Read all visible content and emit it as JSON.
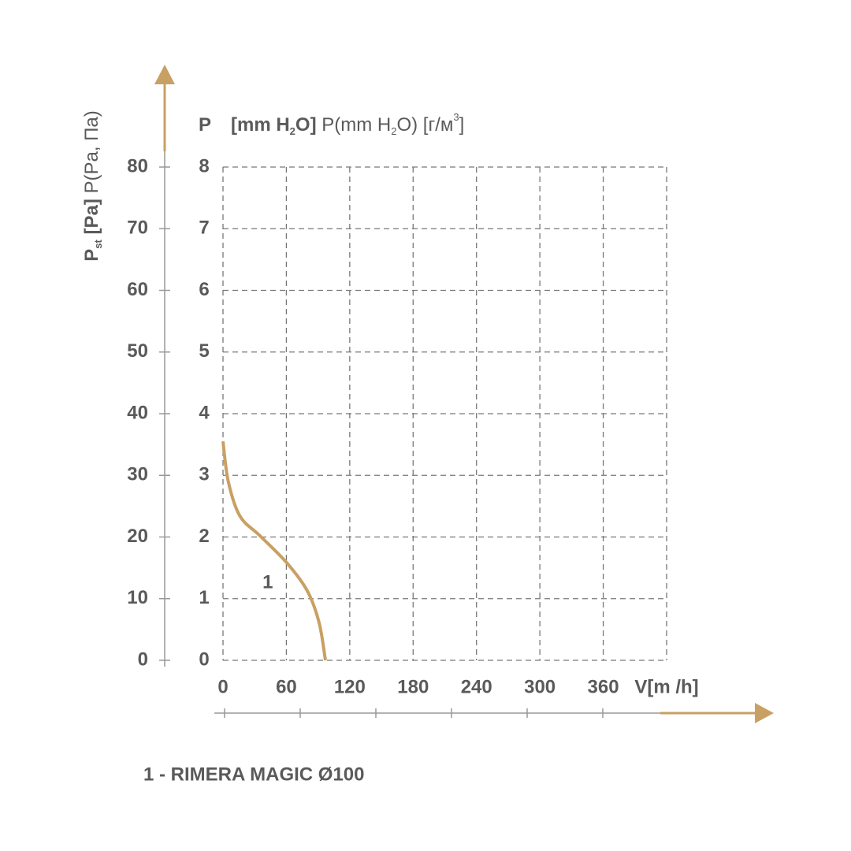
{
  "chart_data": {
    "type": "line",
    "y_title_parts": [
      "P",
      "st",
      " [Pa]",
      " P(Pa, Па)"
    ],
    "y2_title_parts": [
      "P",
      "[mm H",
      "2",
      "O]",
      " P(mm H",
      "2",
      "O) [г/м",
      "3",
      "]"
    ],
    "x_title": "V[m /h]",
    "xlim": [
      0,
      420
    ],
    "xticks": [
      0,
      60,
      120,
      180,
      240,
      300,
      360
    ],
    "ylim": [
      0,
      80
    ],
    "yticks": [
      0,
      10,
      20,
      30,
      40,
      50,
      60,
      70,
      80
    ],
    "y2lim": [
      0,
      8
    ],
    "y2ticks": [
      0,
      1,
      2,
      3,
      4,
      5,
      6,
      7,
      8
    ],
    "grid": true,
    "series": [
      {
        "name": "1 - RIMERA MAGIC Ø100",
        "label": "1",
        "color": "#c9a063",
        "x": [
          0,
          5,
          16,
          35,
          61,
          80,
          91,
          97
        ],
        "values": [
          35.5,
          29,
          23.4,
          20.2,
          15.7,
          11.2,
          6.1,
          0
        ]
      }
    ]
  }
}
